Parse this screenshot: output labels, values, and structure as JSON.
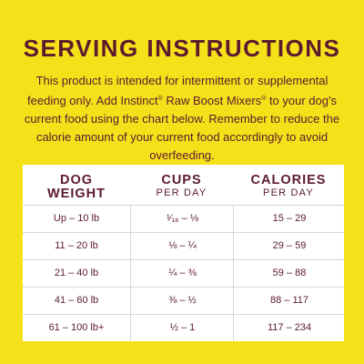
{
  "heading": "SERVING INSTRUCTIONS",
  "intro": {
    "part1": "This product is intended for intermittent or supplemental feeding only. Add Instinct",
    "reg1": "®",
    "part2": " Raw Boost Mixers",
    "reg2": "®",
    "part3": " to your dog's current food using the chart below. Remember to reduce the calorie amount of your current food accordingly to avoid overfeeding."
  },
  "table": {
    "headers": [
      {
        "main_line1": "DOG",
        "main_line2": "WEIGHT",
        "sub": ""
      },
      {
        "main_line1": "CUPS",
        "main_line2": "",
        "sub": "PER DAY"
      },
      {
        "main_line1": "CALORIES",
        "main_line2": "",
        "sub": "PER DAY"
      }
    ],
    "rows": [
      {
        "weight": "Up – 10 lb",
        "cups": "¹⁄₁₆ – ⅛",
        "calories": "15 – 29"
      },
      {
        "weight": "11 – 20 lb",
        "cups": "⅛ – ¼",
        "calories": "29 – 59"
      },
      {
        "weight": "21 – 40 lb",
        "cups": "¼ – ⅜",
        "calories": "59 – 88"
      },
      {
        "weight": "41 – 60 lb",
        "cups": "⅜ – ½",
        "calories": "88 – 117"
      },
      {
        "weight": "61 – 100 lb+",
        "cups": "½ – 1",
        "calories": "117 – 234"
      }
    ]
  },
  "colors": {
    "background": "#f5e11a",
    "text": "#5b1a2e",
    "card": "#ffffff"
  }
}
